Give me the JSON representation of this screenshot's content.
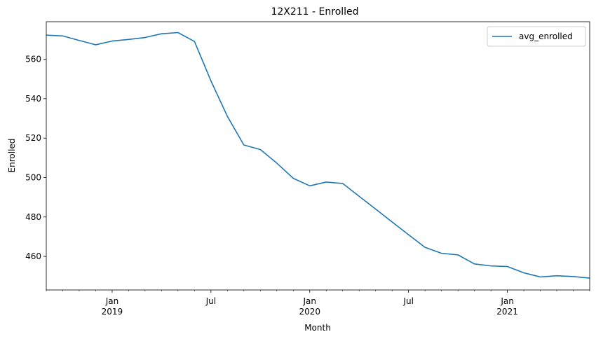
{
  "chart_data": {
    "type": "line",
    "title": "12X211 - Enrolled",
    "xlabel": "Month",
    "ylabel": "Enrolled",
    "grid": false,
    "legend": "top-right",
    "xlim": [
      "2018-09",
      "2021-06"
    ],
    "ylim": [
      443,
      579
    ],
    "x_major_ticks": [
      {
        "date": "2019-01",
        "label": [
          "Jan",
          "2019"
        ]
      },
      {
        "date": "2019-07",
        "label": [
          "Jul"
        ]
      },
      {
        "date": "2020-01",
        "label": [
          "Jan",
          "2020"
        ]
      },
      {
        "date": "2020-07",
        "label": [
          "Jul"
        ]
      },
      {
        "date": "2021-01",
        "label": [
          "Jan",
          "2021"
        ]
      }
    ],
    "y_ticks": [
      460,
      480,
      500,
      520,
      540,
      560
    ],
    "series": [
      {
        "name": "avg_enrolled",
        "color": "#1f77b4",
        "x": [
          "2018-09",
          "2018-10",
          "2018-11",
          "2018-12",
          "2019-01",
          "2019-02",
          "2019-03",
          "2019-04",
          "2019-05",
          "2019-06",
          "2019-07",
          "2019-08",
          "2019-09",
          "2019-10",
          "2019-11",
          "2019-12",
          "2020-01",
          "2020-02",
          "2020-03",
          "2020-04",
          "2020-05",
          "2020-06",
          "2020-07",
          "2020-08",
          "2020-09",
          "2020-10",
          "2020-11",
          "2020-12",
          "2021-01",
          "2021-02",
          "2021-03",
          "2021-04",
          "2021-05",
          "2021-06"
        ],
        "values": [
          572.2,
          571.8,
          569.5,
          567.3,
          569.2,
          570.0,
          571.0,
          572.9,
          573.5,
          569.0,
          549.0,
          531.0,
          516.5,
          514.2,
          507.3,
          499.6,
          495.8,
          497.7,
          497.0,
          490.5,
          484.0,
          477.5,
          471.0,
          464.6,
          461.6,
          460.8,
          456.2,
          455.2,
          454.9,
          451.7,
          449.6,
          450.2,
          449.8,
          449.0
        ]
      }
    ]
  }
}
